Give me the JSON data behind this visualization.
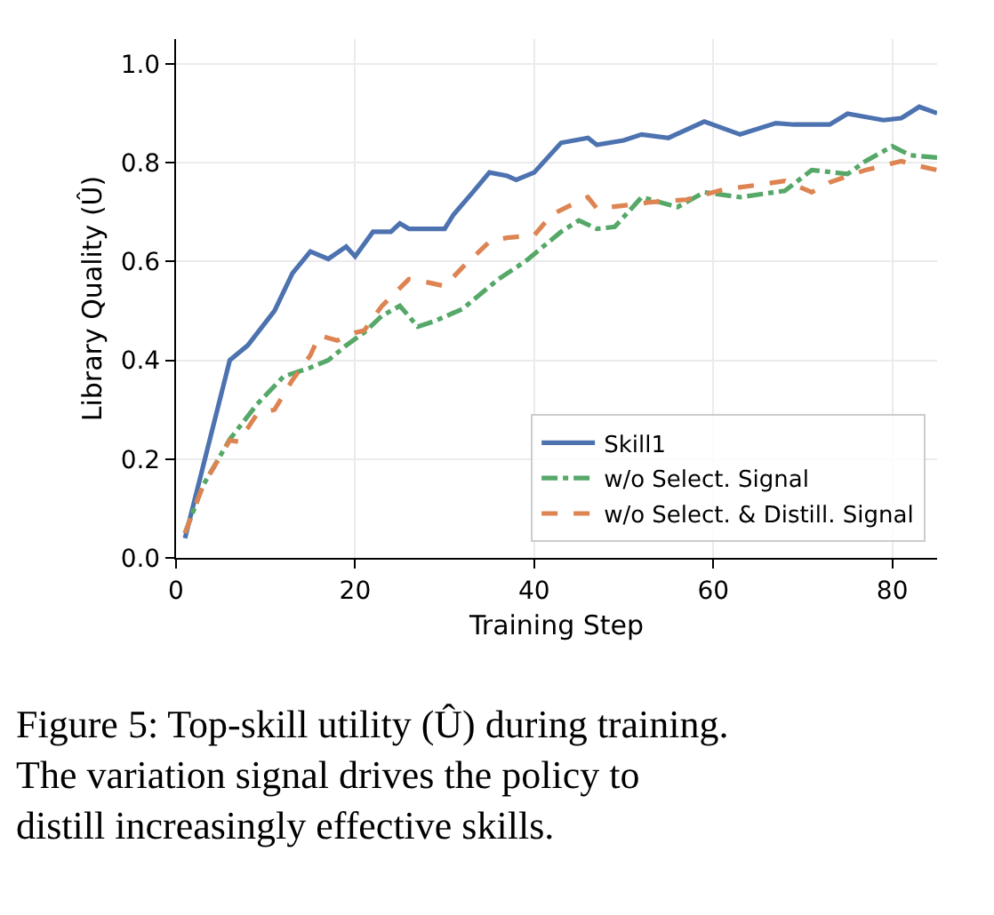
{
  "chart_data": {
    "type": "line",
    "xlabel": "Training Step",
    "ylabel": "Library Quality (Û)",
    "xlim": [
      0,
      85
    ],
    "ylim": [
      0,
      1.05
    ],
    "xticks": [
      0,
      20,
      40,
      60,
      80
    ],
    "yticks": [
      {
        "value": 0,
        "label": "0.0"
      },
      0.2,
      0.4,
      0.6,
      0.8,
      {
        "value": 1,
        "label": "1.0"
      }
    ],
    "grid": true,
    "legend": "bottom right",
    "annotations": [
      "Figure 5: Top-skill utility (Û) during training. The variation signal drives the policy to distill increasingly effective skills."
    ],
    "series": [
      {
        "name": "Skill1",
        "color": "#4c72b0",
        "line_style": "solid",
        "x": [
          1,
          6,
          8,
          11,
          13,
          15,
          17,
          19,
          20,
          22,
          24,
          25,
          26,
          30,
          31,
          33,
          35,
          37,
          38,
          40,
          43,
          46,
          47,
          50,
          52,
          55,
          59,
          63,
          67,
          69,
          73,
          75,
          79,
          81,
          83,
          85
        ],
        "values": [
          0.04,
          0.4,
          0.43,
          0.5,
          0.576,
          0.62,
          0.605,
          0.63,
          0.61,
          0.66,
          0.66,
          0.677,
          0.666,
          0.666,
          0.695,
          0.737,
          0.78,
          0.773,
          0.765,
          0.78,
          0.84,
          0.85,
          0.836,
          0.845,
          0.857,
          0.85,
          0.883,
          0.857,
          0.88,
          0.877,
          0.877,
          0.899,
          0.886,
          0.89,
          0.913,
          0.9
        ]
      },
      {
        "name": "w/o Select. Signal",
        "color": "#55a868",
        "line_style": "dashdot",
        "x": [
          1,
          3,
          6,
          9,
          12,
          15,
          17,
          19,
          21,
          23,
          25,
          27,
          29,
          32,
          34,
          36,
          39,
          41,
          43,
          45,
          47,
          49,
          52,
          56,
          59,
          63,
          68,
          71,
          75,
          77,
          80,
          82,
          85
        ],
        "values": [
          0.05,
          0.146,
          0.24,
          0.31,
          0.367,
          0.385,
          0.4,
          0.43,
          0.456,
          0.49,
          0.51,
          0.468,
          0.48,
          0.504,
          0.534,
          0.564,
          0.6,
          0.63,
          0.66,
          0.683,
          0.666,
          0.67,
          0.73,
          0.71,
          0.74,
          0.73,
          0.743,
          0.785,
          0.777,
          0.803,
          0.833,
          0.815,
          0.81
        ]
      },
      {
        "name": "w/o Select. & Distill. Signal",
        "color": "#dd8452",
        "line_style": "dashed",
        "x": [
          1,
          3,
          6,
          7,
          9,
          11,
          13,
          15,
          16,
          18,
          20,
          21,
          23,
          26,
          28,
          30,
          32,
          35,
          37,
          40,
          42,
          44,
          46,
          47,
          50,
          53,
          57,
          61,
          65,
          68,
          71,
          73,
          77,
          81,
          83,
          85
        ],
        "values": [
          0.05,
          0.146,
          0.238,
          0.235,
          0.29,
          0.3,
          0.36,
          0.41,
          0.45,
          0.44,
          0.456,
          0.46,
          0.51,
          0.564,
          0.558,
          0.55,
          0.588,
          0.64,
          0.648,
          0.653,
          0.695,
          0.713,
          0.73,
          0.707,
          0.713,
          0.72,
          0.725,
          0.745,
          0.755,
          0.763,
          0.74,
          0.76,
          0.785,
          0.803,
          0.793,
          0.785
        ]
      }
    ]
  }
}
